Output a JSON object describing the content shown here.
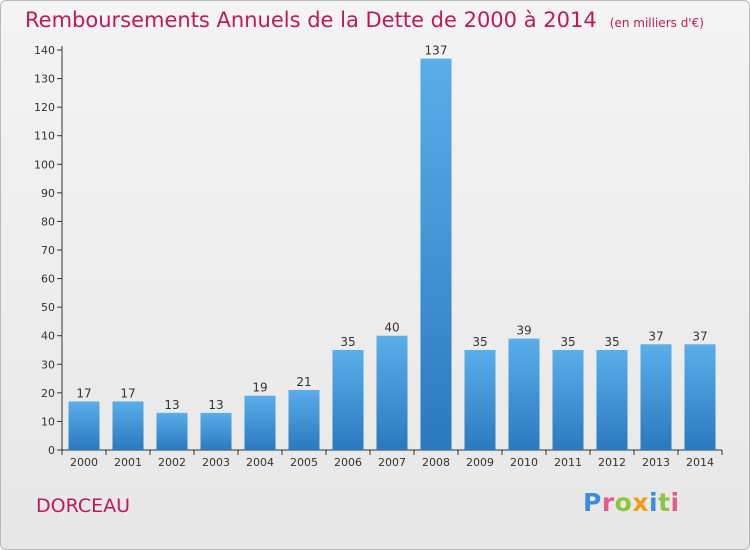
{
  "title": "Remboursements Annuels de la Dette de 2000 à 2014",
  "unit": "(en milliers d'€)",
  "city": "DORCEAU",
  "logo": {
    "letters": [
      {
        "ch": "P",
        "color": "#3a8fd8"
      },
      {
        "ch": "r",
        "color": "#e85a8c"
      },
      {
        "ch": "o",
        "color": "#8cc63f"
      },
      {
        "ch": "x",
        "color": "#f39c12"
      },
      {
        "ch": "i",
        "color": "#3a8fd8"
      },
      {
        "ch": "t",
        "color": "#8cc63f"
      },
      {
        "ch": "i",
        "color": "#e85a8c"
      }
    ]
  },
  "colors": {
    "accent": "#c2185b",
    "bar_top": "#5aaeea",
    "bar_bottom": "#2a79be"
  },
  "chart_data": {
    "type": "bar",
    "title": "Remboursements Annuels de la Dette de 2000 à 2014",
    "xlabel": "",
    "ylabel": "",
    "categories": [
      "2000",
      "2001",
      "2002",
      "2003",
      "2004",
      "2005",
      "2006",
      "2007",
      "2008",
      "2009",
      "2010",
      "2011",
      "2012",
      "2013",
      "2014"
    ],
    "values": [
      17,
      17,
      13,
      13,
      19,
      21,
      35,
      40,
      137,
      35,
      39,
      35,
      35,
      37,
      37
    ],
    "ylim": [
      0,
      140
    ],
    "yticks": [
      0,
      10,
      20,
      30,
      40,
      50,
      60,
      70,
      80,
      90,
      100,
      110,
      120,
      130,
      140
    ],
    "grid": false,
    "legend": "none"
  }
}
